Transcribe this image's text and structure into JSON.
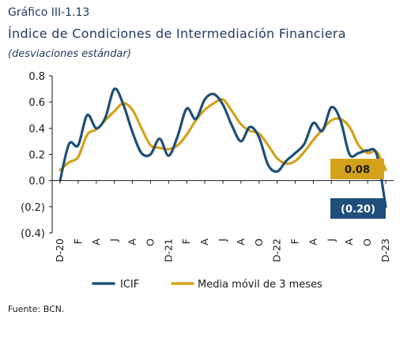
{
  "caption": "Gráfico III-1.13",
  "chart_data": {
    "type": "line",
    "title": "Índice de Condiciones de Intermediación Financiera",
    "subtitle": "(desviaciones estándar)",
    "source": "Fuente: BCN.",
    "ylim": [
      -0.4,
      0.8
    ],
    "yticks": [
      {
        "v": 0.8,
        "label": "0.8"
      },
      {
        "v": 0.6,
        "label": "0.6"
      },
      {
        "v": 0.4,
        "label": "0.4"
      },
      {
        "v": 0.2,
        "label": "0.2"
      },
      {
        "v": 0.0,
        "label": "0.0"
      },
      {
        "v": -0.2,
        "label": "(0.2)"
      },
      {
        "v": -0.4,
        "label": "(0.4)"
      }
    ],
    "x_ticks": [
      "D-20",
      "F",
      "A",
      "J",
      "A",
      "O",
      "D-21",
      "F",
      "A",
      "J",
      "A",
      "O",
      "D-22",
      "F",
      "A",
      "J",
      "A",
      "O",
      "D-23"
    ],
    "n_months": 37,
    "grid": false,
    "legend_position": "bottom",
    "series": [
      {
        "name": "ICIF",
        "color": "#1f4e79",
        "values": [
          0.0,
          0.28,
          0.27,
          0.5,
          0.4,
          0.48,
          0.7,
          0.58,
          0.37,
          0.21,
          0.2,
          0.32,
          0.19,
          0.34,
          0.55,
          0.47,
          0.62,
          0.66,
          0.58,
          0.42,
          0.3,
          0.41,
          0.33,
          0.12,
          0.07,
          0.15,
          0.21,
          0.28,
          0.44,
          0.38,
          0.56,
          0.46,
          0.2,
          0.21,
          0.23,
          0.2,
          -0.2
        ]
      },
      {
        "name": "Media móvil de 3 meses",
        "color": "#d4a11a",
        "values": [
          0.08,
          0.14,
          0.18,
          0.35,
          0.39,
          0.46,
          0.53,
          0.59,
          0.54,
          0.4,
          0.27,
          0.25,
          0.24,
          0.27,
          0.35,
          0.46,
          0.54,
          0.59,
          0.62,
          0.53,
          0.43,
          0.38,
          0.36,
          0.27,
          0.17,
          0.13,
          0.15,
          0.22,
          0.31,
          0.39,
          0.46,
          0.47,
          0.41,
          0.27,
          0.21,
          0.22,
          0.08
        ]
      }
    ],
    "end_labels": [
      {
        "series": "Media móvil de 3 meses",
        "text": "0.08",
        "bg": "#d4a11a",
        "color": "#1a1a1a"
      },
      {
        "series": "ICIF",
        "text": "(0.20)",
        "bg": "#1f4e79",
        "color": "#ffffff"
      }
    ]
  }
}
